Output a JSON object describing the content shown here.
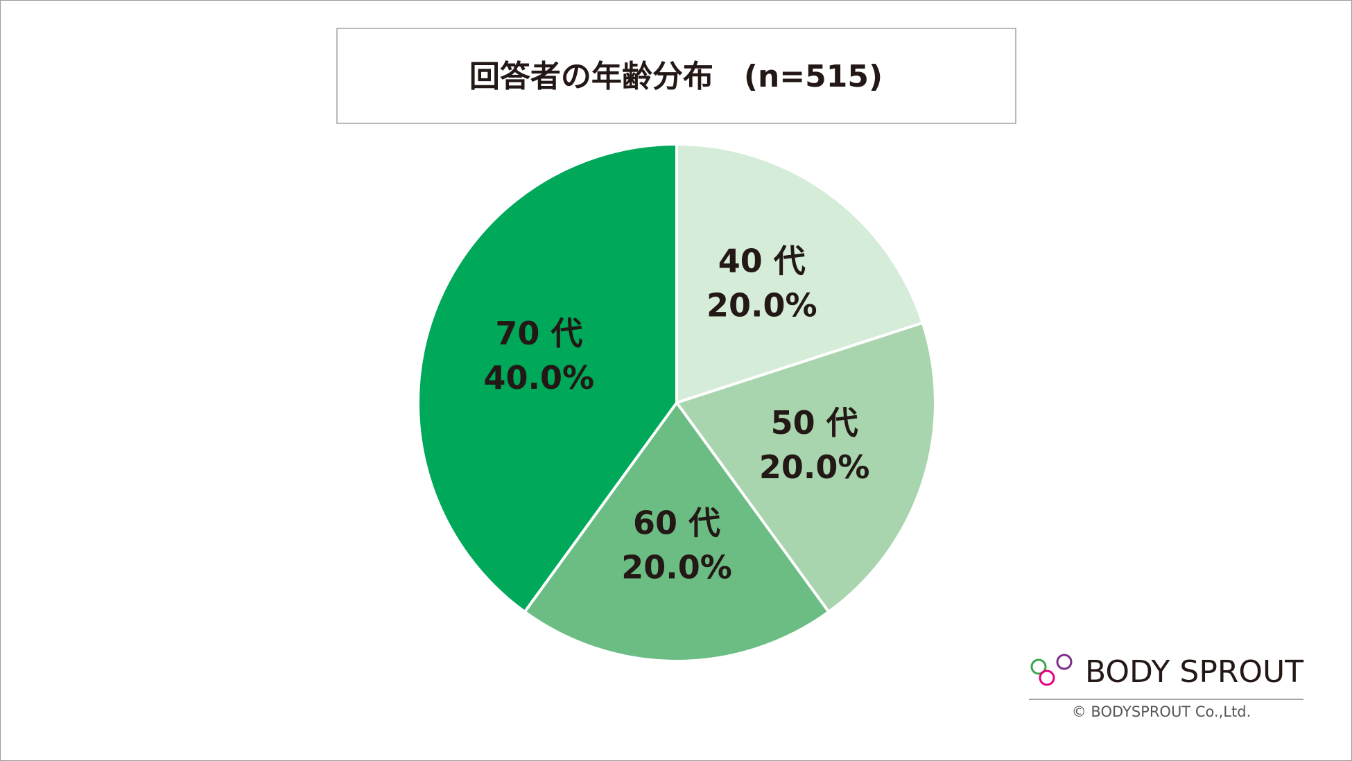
{
  "chart_data": {
    "type": "pie",
    "title": "回答者の年齢分布　(n=515)",
    "categories": [
      "40 代",
      "50 代",
      "60 代",
      "70 代"
    ],
    "values": [
      20,
      20,
      20,
      40
    ],
    "value_labels": [
      "20.0%",
      "20.0%",
      "20.0%",
      "40.0%"
    ],
    "colors": [
      "#d5ecd9",
      "#a8d5ae",
      "#6bbd84",
      "#00a85a"
    ]
  },
  "logo": {
    "name": "BODY SPROUT",
    "copyright": "© BODYSPROUT Co.,Ltd."
  }
}
